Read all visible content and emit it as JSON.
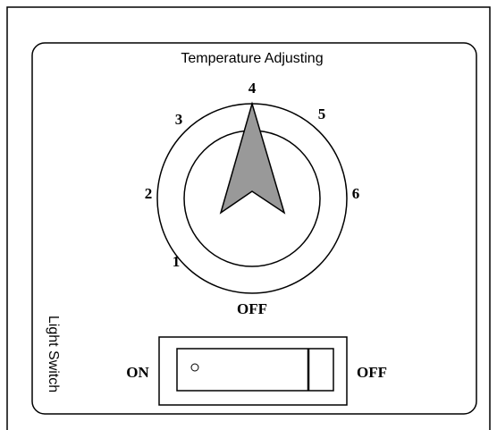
{
  "panel": {
    "title": "Temperature Adjusting",
    "dial": {
      "labels": [
        "1",
        "2",
        "3",
        "4",
        "5",
        "6"
      ],
      "off_label": "OFF"
    },
    "light_switch": {
      "label": "Light Switch",
      "on_label": "ON",
      "off_label": "OFF"
    }
  }
}
